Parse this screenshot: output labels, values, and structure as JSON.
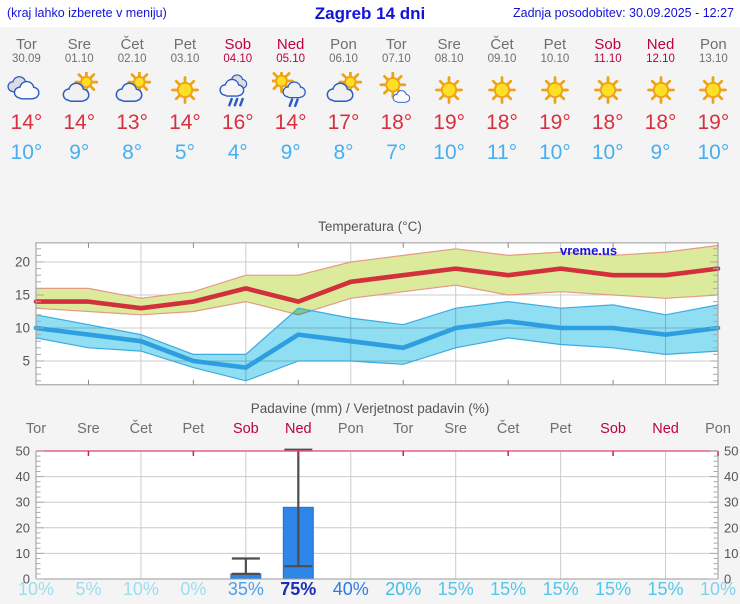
{
  "header": {
    "menu_hint": "(kraj lahko izberete v meniju)",
    "title": "Zagreb 14 dni",
    "updated": "Zadnja posodobitev: 30.09.2025 - 12:27"
  },
  "colors": {
    "header_blue": "#1313d8",
    "day_gray": "#6f6f6f",
    "weekend_red": "#bf0045",
    "tmax_red": "#d8303e",
    "tmin_blue": "#47aff0",
    "page_bg": "#f4f4f4",
    "chart_text": "#555555",
    "watermark_blue": "#1414e0",
    "grid_gray": "#cccccc",
    "frame_gray": "#999999"
  },
  "days": [
    {
      "name": "Tor",
      "date": "30.09",
      "weekend": false,
      "icon": "cloudy",
      "tmax": "14°",
      "tmin": "10°"
    },
    {
      "name": "Sre",
      "date": "01.10",
      "weekend": false,
      "icon": "partly",
      "tmax": "14°",
      "tmin": "9°"
    },
    {
      "name": "Čet",
      "date": "02.10",
      "weekend": false,
      "icon": "partly",
      "tmax": "13°",
      "tmin": "8°"
    },
    {
      "name": "Pet",
      "date": "03.10",
      "weekend": false,
      "icon": "sunny",
      "tmax": "14°",
      "tmin": "5°"
    },
    {
      "name": "Sob",
      "date": "04.10",
      "weekend": true,
      "icon": "rain",
      "tmax": "16°",
      "tmin": "4°"
    },
    {
      "name": "Ned",
      "date": "05.10",
      "weekend": true,
      "icon": "sun-rain",
      "tmax": "14°",
      "tmin": "9°"
    },
    {
      "name": "Pon",
      "date": "06.10",
      "weekend": false,
      "icon": "partly",
      "tmax": "17°",
      "tmin": "8°"
    },
    {
      "name": "Tor",
      "date": "07.10",
      "weekend": false,
      "icon": "mostly-sunny",
      "tmax": "18°",
      "tmin": "7°"
    },
    {
      "name": "Sre",
      "date": "08.10",
      "weekend": false,
      "icon": "sunny",
      "tmax": "19°",
      "tmin": "10°"
    },
    {
      "name": "Čet",
      "date": "09.10",
      "weekend": false,
      "icon": "sunny",
      "tmax": "18°",
      "tmin": "11°"
    },
    {
      "name": "Pet",
      "date": "10.10",
      "weekend": false,
      "icon": "sunny",
      "tmax": "19°",
      "tmin": "10°"
    },
    {
      "name": "Sob",
      "date": "11.10",
      "weekend": true,
      "icon": "sunny",
      "tmax": "18°",
      "tmin": "10°"
    },
    {
      "name": "Ned",
      "date": "12.10",
      "weekend": true,
      "icon": "sunny",
      "tmax": "18°",
      "tmin": "9°"
    },
    {
      "name": "Pon",
      "date": "13.10",
      "weekend": false,
      "icon": "sunny",
      "tmax": "19°",
      "tmin": "10°"
    }
  ],
  "chart_data": [
    {
      "type": "line",
      "title": "Temperatura (°C)",
      "watermark": "vreme.us",
      "ylim": [
        1.4,
        22.9
      ],
      "yticks": [
        5,
        10,
        15,
        20
      ],
      "grid": true,
      "series": [
        {
          "name": "max temperature range",
          "band": true,
          "fill": "#dcea9b",
          "edge": "#e59a86",
          "upper": [
            16,
            16,
            14.5,
            15.5,
            18,
            18,
            20,
            21,
            22,
            21,
            21.5,
            21,
            21.5,
            22.5
          ],
          "lower": [
            13,
            12.5,
            12,
            12.5,
            14,
            12,
            14.5,
            15.5,
            16.5,
            15,
            15.5,
            15,
            14.5,
            15
          ]
        },
        {
          "name": "min temperature range",
          "band": true,
          "fill": "#8fdef2",
          "edge": "#3dabe0",
          "upper": [
            12,
            10.5,
            9,
            6,
            6,
            13,
            11.5,
            10.5,
            13,
            14,
            13,
            13.5,
            12,
            13.5
          ],
          "lower": [
            8.5,
            7,
            6.5,
            4,
            2,
            5,
            5,
            4.5,
            7,
            8.5,
            7.5,
            7,
            6,
            6.5
          ]
        },
        {
          "name": "max temperature",
          "color": "#d2303d",
          "values": [
            14,
            14,
            13,
            14,
            16,
            14,
            17,
            18,
            19,
            18,
            19,
            18,
            18,
            19
          ]
        },
        {
          "name": "min temperature",
          "color": "#2d9ee0",
          "values": [
            10,
            9,
            8,
            5,
            4,
            9,
            8,
            7,
            10,
            11,
            10,
            10,
            9,
            10
          ]
        }
      ]
    },
    {
      "type": "bar",
      "title": "Padavine (mm) / Verjetnost padavin (%)",
      "ylim": [
        0,
        52
      ],
      "yticks": [
        0,
        10,
        20,
        30,
        40,
        50
      ],
      "grid": true,
      "bar_color": "#2e86e8",
      "bar_edge": "#2373cc",
      "whisker_color": "#4d4d4d",
      "top_border_color": "#e06090",
      "day_tick_color": "#cc2244",
      "bars": [
        {
          "day_index": 4,
          "value": 2,
          "range_low": 2,
          "range_high": 8
        },
        {
          "day_index": 5,
          "value": 28,
          "range_low": 5,
          "range_high": 50.5
        }
      ],
      "probabilities": [
        {
          "label": "10%",
          "color": "#9bdef0",
          "bold": false
        },
        {
          "label": "5%",
          "color": "#9bdef0",
          "bold": false
        },
        {
          "label": "10%",
          "color": "#9bdef0",
          "bold": false
        },
        {
          "label": "0%",
          "color": "#9bdef0",
          "bold": false
        },
        {
          "label": "35%",
          "color": "#4aa0e8",
          "bold": false
        },
        {
          "label": "75%",
          "color": "#1b2fb4",
          "bold": true
        },
        {
          "label": "40%",
          "color": "#2e7ce0",
          "bold": false
        },
        {
          "label": "20%",
          "color": "#43bce8",
          "bold": false
        },
        {
          "label": "15%",
          "color": "#52c6ec",
          "bold": false
        },
        {
          "label": "15%",
          "color": "#52c6ec",
          "bold": false
        },
        {
          "label": "15%",
          "color": "#52c6ec",
          "bold": false
        },
        {
          "label": "15%",
          "color": "#52c6ec",
          "bold": false
        },
        {
          "label": "15%",
          "color": "#52c6ec",
          "bold": false
        },
        {
          "label": "10%",
          "color": "#7fd2ee",
          "bold": false
        }
      ]
    }
  ]
}
